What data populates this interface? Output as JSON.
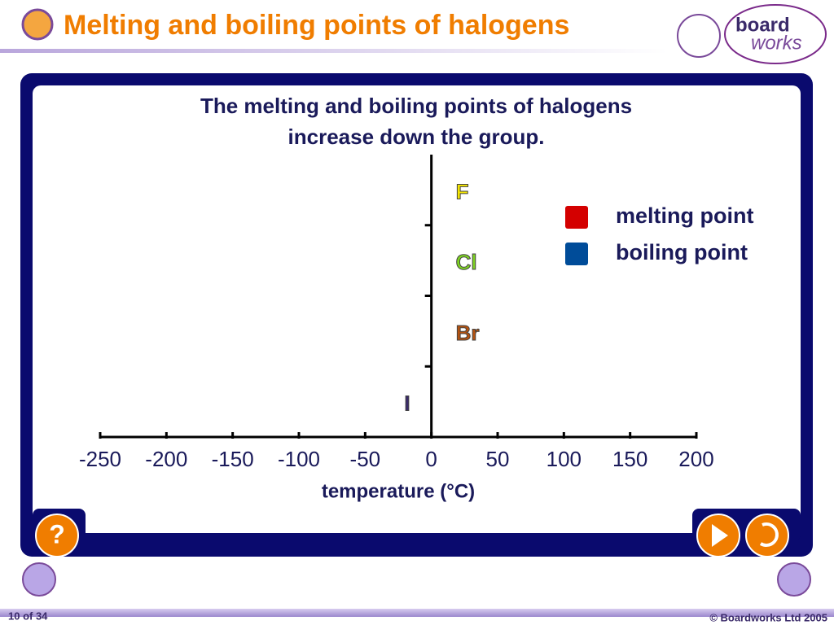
{
  "header": {
    "title": "Melting and boiling points of halogens",
    "logo": [
      "board",
      "works"
    ]
  },
  "chart_data": {
    "type": "bar",
    "orientation": "horizontal",
    "title": [
      "The melting and boiling points of halogens",
      "increase down the group."
    ],
    "categories": [
      "F",
      "Cl",
      "Br",
      "I"
    ],
    "category_colors": [
      "#f5e600",
      "#7ed321",
      "#b5520f",
      "#3a2a6a"
    ],
    "series": [
      {
        "name": "melting point",
        "color": "#d40000"
      },
      {
        "name": "boiling point",
        "color": "#004c99"
      }
    ],
    "xlabel": "temperature (°C)",
    "xlim": [
      -250,
      200
    ],
    "xticks": [
      -250,
      -200,
      -150,
      -100,
      -50,
      0,
      50,
      100,
      150,
      200
    ],
    "legend": "upper right"
  },
  "footer": {
    "page": "10 of 34",
    "copyright": "© Boardworks Ltd 2005"
  }
}
